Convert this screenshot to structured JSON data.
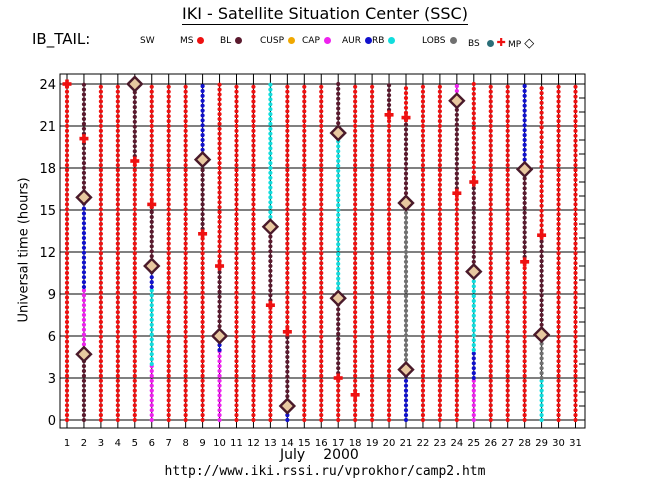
{
  "header": {
    "title": "IKI - Satellite Situation Center (SSC)",
    "satellite": "IB_TAIL:"
  },
  "legend": [
    {
      "label": "SW",
      "color": null
    },
    {
      "label": "MS",
      "color": "#ee1111"
    },
    {
      "label": "BL",
      "color": "#5a1a2e"
    },
    {
      "label": "CUSP",
      "color": "#f0a800"
    },
    {
      "label": "CAP",
      "color": "#ee22ee"
    },
    {
      "label": "AUR",
      "color": "#1111cc"
    },
    {
      "label": "RB",
      "color": "#11dddd"
    },
    {
      "label": "LOBS",
      "color": "#707070"
    },
    {
      "label": "BS",
      "color": "#2a6e78"
    },
    {
      "label": "MP",
      "color": "#000000"
    }
  ],
  "footer": {
    "month": "July",
    "year": "2000",
    "url": "http://www.iki.rssi.ru/vprokhor/camp2.htm"
  },
  "colors": {
    "MS": "#ee1111",
    "BL": "#5a1a2e",
    "CUSP": "#f0a800",
    "CAP": "#ee22ee",
    "AUR": "#1111cc",
    "RB": "#11dddd",
    "LOBS": "#707070",
    "BS": "#2a6e78",
    "BS_marker": "#ee1111",
    "MP_marker": "#4a1a2a"
  },
  "chart_data": {
    "type": "scatter",
    "xlabel": "July 2000",
    "ylabel": "Universal time (hours)",
    "xlim": [
      1,
      31
    ],
    "ylim": [
      0,
      24
    ],
    "x_ticks": [
      1,
      2,
      3,
      4,
      5,
      6,
      7,
      8,
      9,
      10,
      11,
      12,
      13,
      14,
      15,
      16,
      17,
      18,
      19,
      20,
      21,
      22,
      23,
      24,
      25,
      26,
      27,
      28,
      29,
      30,
      31
    ],
    "y_ticks": [
      0,
      3,
      6,
      9,
      12,
      15,
      18,
      21,
      24
    ],
    "grid": true,
    "days": [
      {
        "day": 1,
        "segments": [
          {
            "from": 0,
            "to": 24,
            "region": "MS"
          }
        ]
      },
      {
        "day": 2,
        "segments": [
          {
            "from": 0,
            "to": 4.7,
            "region": "BL"
          },
          {
            "from": 4.7,
            "to": 9.5,
            "region": "CAP"
          },
          {
            "from": 9.5,
            "to": 15.5,
            "region": "AUR"
          },
          {
            "from": 15.9,
            "to": 24,
            "region": "BL"
          }
        ]
      },
      {
        "day": 3,
        "segments": [
          {
            "from": 0,
            "to": 24,
            "region": "MS"
          }
        ]
      },
      {
        "day": 4,
        "segments": [
          {
            "from": 0,
            "to": 24,
            "region": "MS"
          }
        ]
      },
      {
        "day": 5,
        "segments": [
          {
            "from": 0,
            "to": 18.5,
            "region": "MS"
          },
          {
            "from": 18.5,
            "to": 24,
            "region": "BL"
          }
        ]
      },
      {
        "day": 6,
        "segments": [
          {
            "from": 0,
            "to": 4,
            "region": "CAP"
          },
          {
            "from": 4,
            "to": 9.5,
            "region": "RB"
          },
          {
            "from": 9.5,
            "to": 11,
            "region": "AUR"
          },
          {
            "from": 11,
            "to": 15.4,
            "region": "BL"
          },
          {
            "from": 15.4,
            "to": 24,
            "region": "MS"
          }
        ]
      },
      {
        "day": 7,
        "segments": [
          {
            "from": 0,
            "to": 24,
            "region": "MS"
          }
        ]
      },
      {
        "day": 8,
        "segments": [
          {
            "from": 0,
            "to": 24,
            "region": "MS"
          }
        ]
      },
      {
        "day": 9,
        "segments": [
          {
            "from": 0,
            "to": 13.3,
            "region": "MS"
          },
          {
            "from": 13.3,
            "to": 18.6,
            "region": "BL"
          },
          {
            "from": 18.6,
            "to": 24,
            "region": "AUR"
          }
        ]
      },
      {
        "day": 10,
        "segments": [
          {
            "from": 0,
            "to": 5,
            "region": "CAP"
          },
          {
            "from": 5,
            "to": 6,
            "region": "AUR"
          },
          {
            "from": 6,
            "to": 11,
            "region": "BL"
          },
          {
            "from": 11,
            "to": 24,
            "region": "MS"
          }
        ]
      },
      {
        "day": 11,
        "segments": [
          {
            "from": 0,
            "to": 24,
            "region": "MS"
          }
        ]
      },
      {
        "day": 12,
        "segments": [
          {
            "from": 0,
            "to": 24,
            "region": "MS"
          }
        ]
      },
      {
        "day": 13,
        "segments": [
          {
            "from": 0,
            "to": 8.2,
            "region": "MS"
          },
          {
            "from": 8.2,
            "to": 13.8,
            "region": "BL"
          },
          {
            "from": 13.8,
            "to": 24,
            "region": "RB"
          }
        ]
      },
      {
        "day": 14,
        "segments": [
          {
            "from": 0,
            "to": 1,
            "region": "AUR"
          },
          {
            "from": 1,
            "to": 6.3,
            "region": "BL"
          },
          {
            "from": 6.3,
            "to": 24,
            "region": "MS"
          }
        ]
      },
      {
        "day": 15,
        "segments": [
          {
            "from": 0,
            "to": 24,
            "region": "MS"
          }
        ]
      },
      {
        "day": 16,
        "segments": [
          {
            "from": 0,
            "to": 24,
            "region": "MS"
          }
        ]
      },
      {
        "day": 17,
        "segments": [
          {
            "from": 0,
            "to": 3,
            "region": "MS"
          },
          {
            "from": 3,
            "to": 8.7,
            "region": "BL"
          },
          {
            "from": 8.7,
            "to": 20.5,
            "region": "RB"
          },
          {
            "from": 20.5,
            "to": 24,
            "region": "BL"
          }
        ]
      },
      {
        "day": 18,
        "segments": [
          {
            "from": 0,
            "to": 24,
            "region": "MS"
          }
        ]
      },
      {
        "day": 19,
        "segments": [
          {
            "from": 0,
            "to": 24,
            "region": "MS"
          }
        ]
      },
      {
        "day": 20,
        "segments": [
          {
            "from": 0,
            "to": 21.8,
            "region": "MS"
          },
          {
            "from": 21.8,
            "to": 24,
            "region": "BL"
          }
        ]
      },
      {
        "day": 21,
        "segments": [
          {
            "from": 0,
            "to": 3.6,
            "region": "AUR"
          },
          {
            "from": 3.6,
            "to": 15.5,
            "region": "LOBS"
          },
          {
            "from": 15.5,
            "to": 21.6,
            "region": "BL"
          },
          {
            "from": 21.6,
            "to": 24,
            "region": "MS"
          }
        ]
      },
      {
        "day": 22,
        "segments": [
          {
            "from": 0,
            "to": 24,
            "region": "MS"
          }
        ]
      },
      {
        "day": 23,
        "segments": [
          {
            "from": 0,
            "to": 24,
            "region": "MS"
          }
        ]
      },
      {
        "day": 24,
        "segments": [
          {
            "from": 0,
            "to": 16.2,
            "region": "MS"
          },
          {
            "from": 16.2,
            "to": 22.8,
            "region": "BL"
          },
          {
            "from": 22.8,
            "to": 24,
            "region": "CAP"
          }
        ]
      },
      {
        "day": 25,
        "segments": [
          {
            "from": 0,
            "to": 3,
            "region": "CAP"
          },
          {
            "from": 3,
            "to": 5,
            "region": "AUR"
          },
          {
            "from": 5,
            "to": 10.6,
            "region": "RB"
          },
          {
            "from": 10.6,
            "to": 17,
            "region": "BL"
          },
          {
            "from": 17,
            "to": 24,
            "region": "MS"
          }
        ]
      },
      {
        "day": 26,
        "segments": [
          {
            "from": 0,
            "to": 24,
            "region": "MS"
          }
        ]
      },
      {
        "day": 27,
        "segments": [
          {
            "from": 0,
            "to": 24,
            "region": "MS"
          }
        ]
      },
      {
        "day": 28,
        "segments": [
          {
            "from": 0,
            "to": 11.3,
            "region": "MS"
          },
          {
            "from": 11.3,
            "to": 17.9,
            "region": "BL"
          },
          {
            "from": 17.9,
            "to": 24,
            "region": "AUR"
          }
        ]
      },
      {
        "day": 29,
        "segments": [
          {
            "from": 0,
            "to": 3,
            "region": "RB"
          },
          {
            "from": 3,
            "to": 6.1,
            "region": "LOBS"
          },
          {
            "from": 6.1,
            "to": 13.2,
            "region": "BL"
          },
          {
            "from": 13.2,
            "to": 24,
            "region": "MS"
          }
        ]
      },
      {
        "day": 30,
        "segments": [
          {
            "from": 0,
            "to": 24,
            "region": "MS"
          }
        ]
      },
      {
        "day": 31,
        "segments": [
          {
            "from": 0,
            "to": 24,
            "region": "MS"
          }
        ]
      }
    ],
    "bow_shock_crossings": [
      {
        "day": 1,
        "ut": 24.0
      },
      {
        "day": 2,
        "ut": 20.1
      },
      {
        "day": 5,
        "ut": 18.5
      },
      {
        "day": 6,
        "ut": 15.4
      },
      {
        "day": 9,
        "ut": 13.3
      },
      {
        "day": 10,
        "ut": 11.0
      },
      {
        "day": 13,
        "ut": 8.2
      },
      {
        "day": 14,
        "ut": 6.3
      },
      {
        "day": 17,
        "ut": 3.0
      },
      {
        "day": 18,
        "ut": 1.8
      },
      {
        "day": 20,
        "ut": 21.8
      },
      {
        "day": 21,
        "ut": 21.6
      },
      {
        "day": 24,
        "ut": 16.2
      },
      {
        "day": 25,
        "ut": 17.0
      },
      {
        "day": 28,
        "ut": 11.3
      },
      {
        "day": 29,
        "ut": 13.2
      }
    ],
    "magnetopause_crossings": [
      {
        "day": 2,
        "ut": 4.7
      },
      {
        "day": 2,
        "ut": 15.9
      },
      {
        "day": 5,
        "ut": 24.0
      },
      {
        "day": 6,
        "ut": 11.0
      },
      {
        "day": 9,
        "ut": 18.6
      },
      {
        "day": 10,
        "ut": 6.0
      },
      {
        "day": 13,
        "ut": 13.8
      },
      {
        "day": 14,
        "ut": 1.0
      },
      {
        "day": 17,
        "ut": 8.7
      },
      {
        "day": 17,
        "ut": 20.5
      },
      {
        "day": 21,
        "ut": 3.6
      },
      {
        "day": 21,
        "ut": 15.5
      },
      {
        "day": 24,
        "ut": 22.8
      },
      {
        "day": 25,
        "ut": 10.6
      },
      {
        "day": 28,
        "ut": 17.9
      },
      {
        "day": 29,
        "ut": 6.1
      }
    ]
  }
}
